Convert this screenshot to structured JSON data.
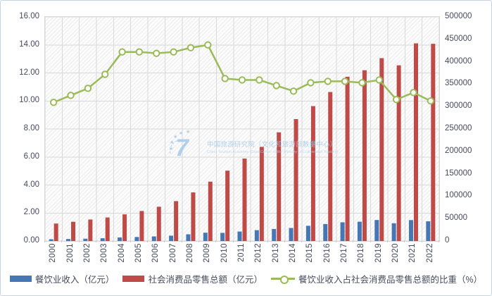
{
  "colors": {
    "bar_catering": "#4677B4",
    "bar_retail": "#BE4B48",
    "line_ratio": "#9BBB59",
    "marker_fill": "#FFFFFF",
    "axis_text": "#454B5C",
    "gridline": "#D9D9D9",
    "tick": "#C9C9C9",
    "plot_border": "#D9D9D9",
    "frame_border": "#C7D5E3",
    "watermark": "#A6C9E9",
    "watermark_en": "#B9D5EF"
  },
  "watermark": {
    "cn": "中国旅游研究院（文化和旅游部数据中心）",
    "en": "China Tourism Academy (Data Center of the Ministry of Culture and Tourism)",
    "logo_glyph": "7",
    "star": "★"
  },
  "legend": {
    "items": [
      {
        "key": "catering",
        "swatch": "bar"
      },
      {
        "key": "retail",
        "swatch": "bar"
      },
      {
        "key": "ratio",
        "swatch": "line-marker"
      }
    ]
  },
  "chart_data": {
    "type": "combo-bar-line",
    "categories": [
      "2000",
      "2001",
      "2002",
      "2003",
      "2004",
      "2005",
      "2006",
      "2007",
      "2008",
      "2009",
      "2010",
      "2011",
      "2012",
      "2013",
      "2014",
      "2015",
      "2016",
      "2017",
      "2018",
      "2019",
      "2020",
      "2021",
      "2022"
    ],
    "series": [
      {
        "name": "餐饮业收入（亿元）",
        "type": "bar",
        "axis": "right",
        "color": "#4677B4",
        "values": [
          3900,
          4500,
          5200,
          6200,
          8000,
          9000,
          10300,
          12000,
          15000,
          18600,
          18200,
          21200,
          24200,
          26900,
          29100,
          34000,
          37900,
          41800,
          43100,
          46900,
          39600,
          46700,
          44000
        ]
      },
      {
        "name": "社会消费品零售总额（亿元）",
        "type": "bar",
        "axis": "right",
        "color": "#BE4B48",
        "values": [
          39000,
          43000,
          48000,
          52500,
          59500,
          67000,
          76500,
          89000,
          108500,
          132500,
          157000,
          184000,
          210000,
          242500,
          272000,
          301000,
          332500,
          366500,
          381000,
          408000,
          392000,
          441000,
          440000
        ]
      },
      {
        "name": "餐饮业收入占社会消费品零售总额的比重（%）",
        "type": "line",
        "axis": "left",
        "color": "#9BBB59",
        "values": [
          9.9,
          10.4,
          10.9,
          11.9,
          13.5,
          13.5,
          13.4,
          13.5,
          13.8,
          14.0,
          11.6,
          11.5,
          11.5,
          11.1,
          10.7,
          11.3,
          11.4,
          11.4,
          11.3,
          11.5,
          10.1,
          10.6,
          10.0
        ]
      }
    ],
    "axes": {
      "left": {
        "min": 0,
        "max": 16,
        "step": 2,
        "tick_labels": [
          "16.00",
          "14.00",
          "12.00",
          "10.00",
          "8.00",
          "6.00",
          "4.00",
          "2.00",
          "0.00"
        ]
      },
      "right": {
        "min": 0,
        "max": 500000,
        "step": 50000,
        "tick_labels": [
          "500000",
          "450000",
          "400000",
          "350000",
          "300000",
          "250000",
          "200000",
          "150000",
          "100000",
          "50000",
          "0"
        ]
      }
    },
    "grid": {
      "horizontal": true,
      "vertical": true
    },
    "legend_position": "bottom"
  }
}
